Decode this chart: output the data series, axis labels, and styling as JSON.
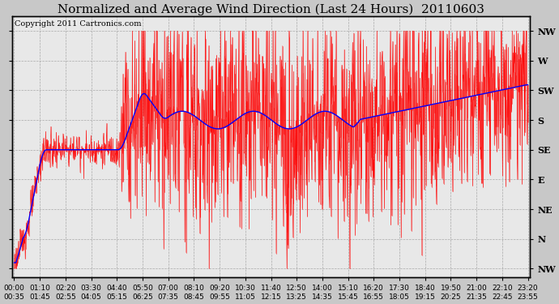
{
  "title": "Normalized and Average Wind Direction (Last 24 Hours)  20110603",
  "copyright_text": "Copyright 2011 Cartronics.com",
  "background_color": "#c8c8c8",
  "plot_bg_color": "#e8e8e8",
  "y_tick_labels_right": [
    "NW",
    "W",
    "SW",
    "S",
    "SE",
    "E",
    "NE",
    "N",
    "NW"
  ],
  "y_tick_values": [
    8,
    7,
    6,
    5,
    4,
    3,
    2,
    1,
    0
  ],
  "ylim": [
    -0.3,
    8.5
  ],
  "x_tick_labels": [
    "00:00\n00:35",
    "01:10\n01:45",
    "02:20\n02:55",
    "03:30\n04:05",
    "04:40\n05:15",
    "05:50\n06:25",
    "07:00\n07:35",
    "08:10\n08:45",
    "09:20\n09:55",
    "10:30\n11:05",
    "11:40\n12:15",
    "12:50\n13:25",
    "14:00\n14:35",
    "15:10\n15:45",
    "16:20\n16:55",
    "17:30\n18:05",
    "18:40\n19:15",
    "19:50\n20:25",
    "21:00\n21:35",
    "22:10\n22:45",
    "23:20\n23:55"
  ],
  "red_line_color": "#ff0000",
  "blue_line_color": "#0000ff",
  "grid_color": "#aaaaaa",
  "title_fontsize": 11,
  "copyright_fontsize": 7,
  "axis_label_fontsize": 6.5,
  "ytick_fontsize": 8,
  "n_ticks": 21
}
